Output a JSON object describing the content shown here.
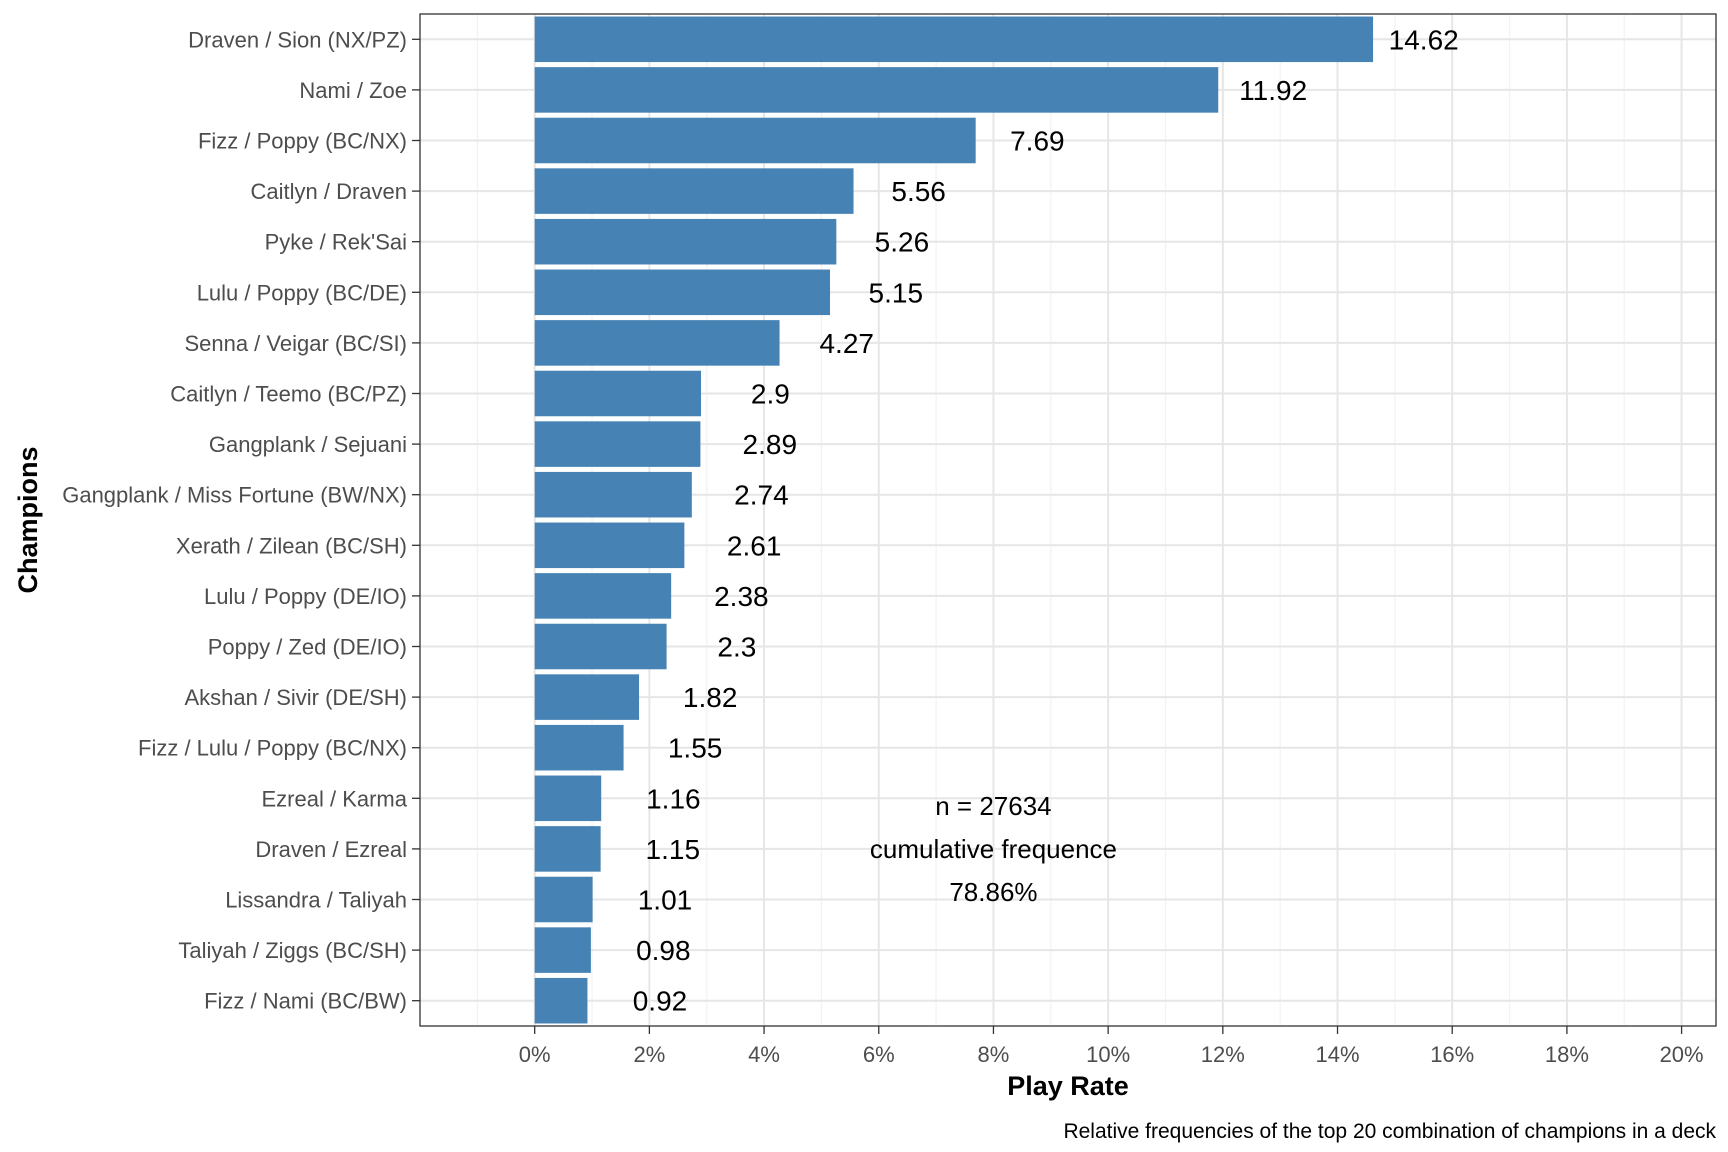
{
  "chart_data": {
    "type": "bar",
    "orientation": "horizontal",
    "categories": [
      "Draven / Sion (NX/PZ)",
      "Nami / Zoe",
      "Fizz / Poppy (BC/NX)",
      "Caitlyn / Draven",
      "Pyke / Rek'Sai",
      "Lulu / Poppy (BC/DE)",
      "Senna / Veigar (BC/SI)",
      "Caitlyn / Teemo (BC/PZ)",
      "Gangplank / Sejuani",
      "Gangplank / Miss Fortune (BW/NX)",
      "Xerath / Zilean (BC/SH)",
      "Lulu / Poppy (DE/IO)",
      "Poppy / Zed (DE/IO)",
      "Akshan / Sivir (DE/SH)",
      "Fizz / Lulu / Poppy (BC/NX)",
      "Ezreal / Karma",
      "Draven / Ezreal",
      "Lissandra / Taliyah",
      "Taliyah / Ziggs (BC/SH)",
      "Fizz / Nami (BC/BW)"
    ],
    "values": [
      14.62,
      11.92,
      7.69,
      5.56,
      5.26,
      5.15,
      4.27,
      2.9,
      2.89,
      2.74,
      2.61,
      2.38,
      2.3,
      1.82,
      1.55,
      1.16,
      1.15,
      1.01,
      0.98,
      0.92
    ],
    "value_labels": [
      "14.62",
      "11.92",
      "7.69",
      "5.56",
      "5.26",
      "5.15",
      "4.27",
      "2.9",
      "2.89",
      "2.74",
      "2.61",
      "2.38",
      "2.3",
      "1.82",
      "1.55",
      "1.16",
      "1.15",
      "1.01",
      "0.98",
      "0.92"
    ],
    "xlabel": "Play Rate",
    "ylabel": "Champions",
    "xlim": [
      -2,
      20.6
    ],
    "xticks": [
      0,
      2,
      4,
      6,
      8,
      10,
      12,
      14,
      16,
      18,
      20
    ],
    "xtick_labels": [
      "0%",
      "2%",
      "4%",
      "6%",
      "8%",
      "10%",
      "12%",
      "14%",
      "16%",
      "18%",
      "20%"
    ],
    "caption": "Relative frequencies of the top 20 combination of champions in a deck",
    "annotation": [
      "n = 27634",
      "cumulative frequence",
      "78.86%"
    ],
    "annotation_position": [
      8,
      17
    ],
    "bar_color": "#4682B4",
    "grid": true,
    "theme": "bw"
  }
}
